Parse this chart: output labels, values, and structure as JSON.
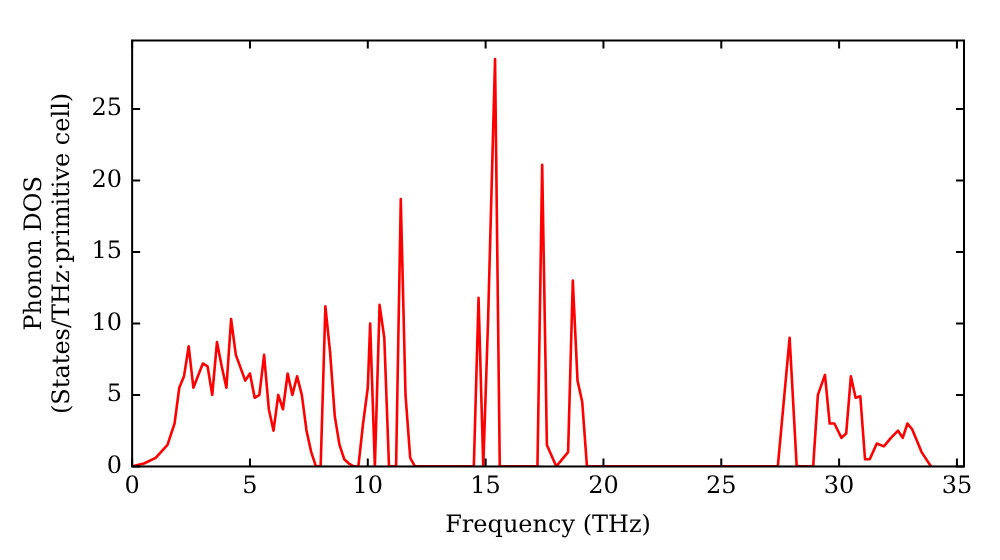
{
  "chart_data": {
    "type": "line",
    "xlabel": "Frequency (THz)",
    "ylabel": "Phonon DOS\n(States/THz·primitive cell)",
    "xlim": [
      0,
      35.3
    ],
    "ylim": [
      0,
      29.8
    ],
    "xticks": [
      0,
      5,
      10,
      15,
      20,
      25,
      30,
      35
    ],
    "yticks": [
      0,
      5,
      10,
      15,
      20,
      25
    ],
    "grid": false,
    "legend": false,
    "marker": "none",
    "line_style": "solid",
    "x": [
      0,
      0.5,
      1,
      1.5,
      1.8,
      2.0,
      2.2,
      2.4,
      2.6,
      3.0,
      3.2,
      3.4,
      3.6,
      3.8,
      4.0,
      4.2,
      4.4,
      4.8,
      5.0,
      5.2,
      5.4,
      5.6,
      5.8,
      6.0,
      6.2,
      6.4,
      6.6,
      6.8,
      7.0,
      7.2,
      7.4,
      7.6,
      7.8,
      8.0,
      8.2,
      8.4,
      8.6,
      8.8,
      9.0,
      9.2,
      9.4,
      9.6,
      9.8,
      10.0,
      10.1,
      10.3,
      10.5,
      10.7,
      10.9,
      11.2,
      11.4,
      11.6,
      11.8,
      12,
      14.5,
      14.7,
      14.9,
      15.1,
      15.4,
      15.6,
      17.2,
      17.4,
      17.6,
      18.0,
      18.5,
      18.7,
      18.9,
      19.1,
      19.3,
      27.4,
      27.9,
      28.2,
      28.9,
      29.1,
      29.4,
      29.6,
      29.8,
      30.1,
      30.3,
      30.5,
      30.7,
      30.9,
      31.1,
      31.3,
      31.6,
      31.9,
      32.2,
      32.5,
      32.7,
      32.9,
      33.1,
      33.5,
      33.9
    ],
    "series": [
      {
        "color": "#ff0000",
        "values": [
          0,
          0.2,
          0.6,
          1.5,
          3,
          5.5,
          6.3,
          8.4,
          5.5,
          7.2,
          7,
          5,
          8.7,
          7,
          5.5,
          10.3,
          7.8,
          6,
          6.5,
          4.8,
          5,
          7.8,
          4,
          2.5,
          5,
          4,
          6.5,
          5,
          6.3,
          5,
          2.5,
          1,
          0,
          0,
          11.2,
          8,
          3.5,
          1.5,
          0.5,
          0.2,
          0,
          0,
          3,
          5.5,
          10,
          0,
          11.3,
          9,
          0,
          0,
          18.7,
          5,
          0.6,
          0,
          0,
          11.8,
          0,
          10,
          28.5,
          0,
          0,
          21.1,
          1.5,
          0,
          1,
          13,
          6,
          4.5,
          0,
          0,
          9,
          0,
          0,
          5,
          6.4,
          3,
          3,
          2,
          2.3,
          6.3,
          4.8,
          4.9,
          0.5,
          0.5,
          1.6,
          1.4,
          2,
          2.5,
          2,
          3,
          2.6,
          1,
          0
        ]
      }
    ]
  }
}
